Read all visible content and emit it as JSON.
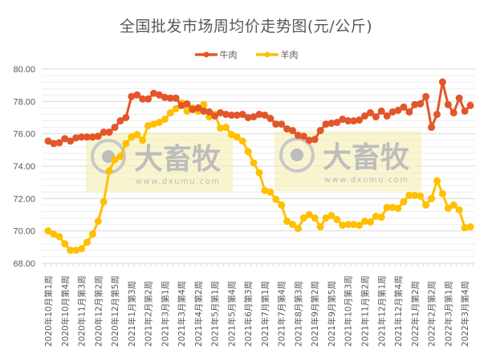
{
  "chart_data": {
    "type": "line",
    "title": "全国批发市场周均价走势图(元/公斤)",
    "xlabel": "",
    "ylabel": "",
    "ylim": [
      68,
      80
    ],
    "yticks": [
      "68.00",
      "70.00",
      "72.00",
      "74.00",
      "76.00",
      "78.00",
      "80.00"
    ],
    "grid": true,
    "legend_position": "top",
    "x_tick_labels": [
      "2020年10月第1周",
      "2020年10月第4周",
      "2020年11月第3周",
      "2020年12月第2周",
      "2020年12月第5周",
      "2021年1月第3周",
      "2021年2月第2周",
      "2021年3月第1周",
      "2021年3月第4周",
      "2021年4月第2周",
      "2021年5月第1周",
      "2021年5月第4周",
      "2021年6月第3周",
      "2021年7月第1周",
      "2021年7月第4周",
      "2021年8月第3周",
      "2021年9月第2周",
      "2021年9月第5周",
      "2021年10月第3周",
      "2021年11月第2周",
      "2021年12月第1周",
      "2021年12月第4周",
      "2022年1月第2周",
      "2022年2月第2周",
      "2022年3月第1周",
      "2022年3月第4周"
    ],
    "series": [
      {
        "name": "牛肉",
        "color": "#E2562A",
        "values": [
          75.55,
          75.4,
          75.45,
          75.7,
          75.55,
          75.75,
          75.8,
          75.8,
          75.8,
          75.85,
          76.1,
          76.1,
          76.4,
          76.8,
          77.0,
          78.3,
          78.4,
          78.15,
          78.15,
          78.5,
          78.4,
          78.25,
          78.2,
          78.2,
          77.75,
          77.85,
          77.5,
          77.6,
          77.4,
          77.35,
          77.1,
          77.3,
          77.2,
          77.15,
          77.15,
          77.2,
          77.0,
          77.05,
          77.2,
          77.15,
          76.95,
          76.6,
          76.6,
          76.3,
          76.2,
          75.9,
          75.85,
          75.6,
          75.65,
          76.2,
          76.6,
          76.65,
          76.7,
          76.9,
          76.8,
          76.8,
          76.85,
          77.1,
          77.3,
          77.05,
          77.4,
          77.1,
          77.35,
          77.45,
          77.65,
          77.35,
          77.8,
          77.85,
          78.3,
          76.4,
          77.2,
          79.2,
          77.8,
          77.3,
          78.2,
          77.4,
          77.75
        ]
      },
      {
        "name": "羊肉",
        "color": "#FFC000",
        "values": [
          70.0,
          69.8,
          69.65,
          69.2,
          68.8,
          68.8,
          68.9,
          69.3,
          69.8,
          70.6,
          71.8,
          73.7,
          74.4,
          74.6,
          75.4,
          75.8,
          75.95,
          75.6,
          76.5,
          76.6,
          76.7,
          76.9,
          77.3,
          77.55,
          77.9,
          77.4,
          77.6,
          77.4,
          77.8,
          77.05,
          77.2,
          76.35,
          76.4,
          75.95,
          75.8,
          75.55,
          74.9,
          74.2,
          73.6,
          72.5,
          72.4,
          71.95,
          71.6,
          70.6,
          70.4,
          70.15,
          70.8,
          71.0,
          70.8,
          70.25,
          70.8,
          70.95,
          70.7,
          70.35,
          70.4,
          70.4,
          70.35,
          70.6,
          70.55,
          70.9,
          70.85,
          71.45,
          71.45,
          71.4,
          71.8,
          72.2,
          72.2,
          72.15,
          71.6,
          72.0,
          73.1,
          72.3,
          71.4,
          71.6,
          71.3,
          70.2,
          70.25
        ]
      }
    ]
  },
  "title": "全国批发市场周均价走势图(元/公斤)",
  "legend": [
    {
      "label": "牛肉",
      "color": "#E2562A"
    },
    {
      "label": "羊肉",
      "color": "#FFC000"
    }
  ],
  "watermark": {
    "brand": "大畜牧",
    "url": "www.dxumu.com"
  }
}
